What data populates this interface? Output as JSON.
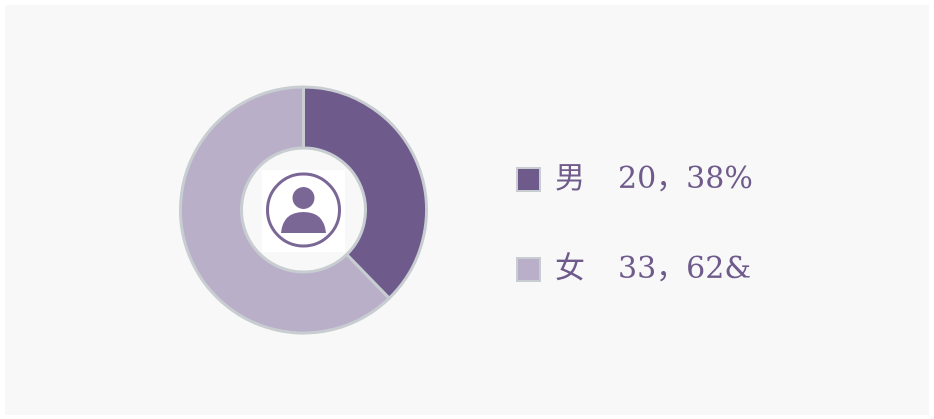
{
  "chart_data": {
    "type": "donut",
    "categories": [
      "男",
      "女"
    ],
    "values": [
      20,
      33
    ],
    "value_labels": [
      "20，38%",
      "33，62&"
    ],
    "colors": [
      "#6f5b8b",
      "#b9afc8"
    ]
  }
}
